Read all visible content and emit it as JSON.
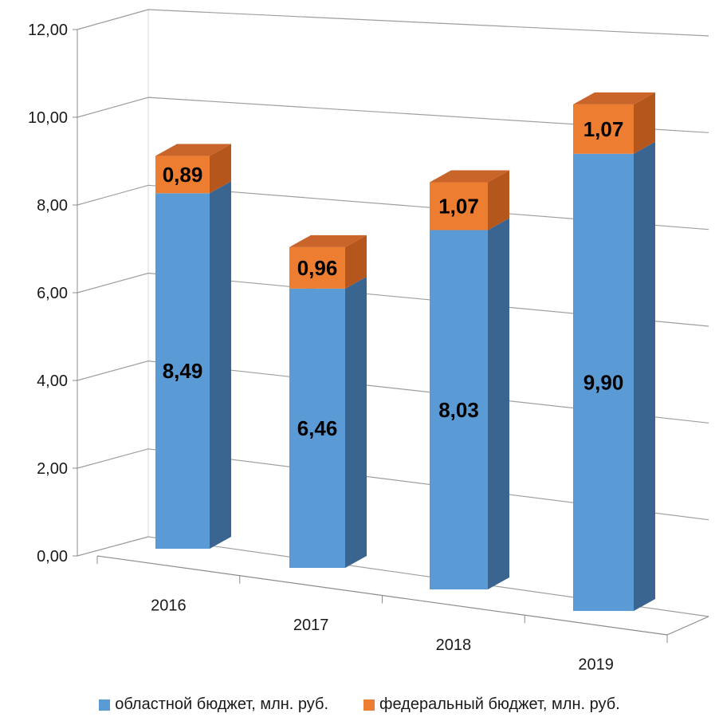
{
  "chart_data": {
    "type": "bar",
    "stacked": true,
    "three_d": true,
    "categories": [
      "2016",
      "2017",
      "2018",
      "2019"
    ],
    "ylim": [
      0,
      12
    ],
    "yticks": [
      "0,00",
      "2,00",
      "4,00",
      "6,00",
      "8,00",
      "10,00",
      "12,00"
    ],
    "series": [
      {
        "name": "областной бюджет, млн. руб.",
        "values": [
          8.49,
          6.46,
          8.03,
          9.9
        ],
        "labels": [
          "8,49",
          "6,46",
          "8,03",
          "9,90"
        ],
        "color": "#5b9bd5"
      },
      {
        "name": "федеральный бюджет, млн. руб.",
        "values": [
          0.89,
          0.96,
          1.07,
          1.07
        ],
        "labels": [
          "0,89",
          "0,96",
          "1,07",
          "1,07"
        ],
        "color": "#ed7d31"
      }
    ],
    "grid": true,
    "legend_position": "bottom"
  }
}
